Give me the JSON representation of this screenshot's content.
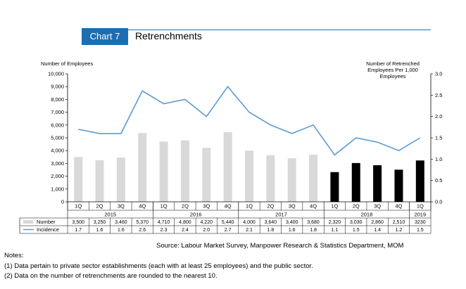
{
  "header": {
    "chart_label": "Chart 7",
    "title": "Retrenchments"
  },
  "chart_data": {
    "type": "bar",
    "title": "Retrenchments",
    "categories": [
      "1Q",
      "2Q",
      "3Q",
      "4Q",
      "1Q",
      "2Q",
      "3Q",
      "4Q",
      "1Q",
      "2Q",
      "3Q",
      "4Q",
      "1Q",
      "2Q",
      "3Q",
      "4Q",
      "1Q"
    ],
    "years": [
      {
        "label": "2015",
        "quarters": 4
      },
      {
        "label": "2016",
        "quarters": 4
      },
      {
        "label": "2017",
        "quarters": 4
      },
      {
        "label": "2018",
        "quarters": 4
      },
      {
        "label": "2019",
        "quarters": 1
      }
    ],
    "series": [
      {
        "name": "Number",
        "type": "bar",
        "axis": "left",
        "values": [
          3500,
          3250,
          3460,
          5370,
          4710,
          4800,
          4220,
          5440,
          4000,
          3640,
          3400,
          3680,
          2320,
          3030,
          2860,
          2510,
          3230
        ],
        "labels": [
          "3,500",
          "3,250",
          "3,460",
          "5,370",
          "4,710",
          "4,800",
          "4,220",
          "5,440",
          "4,000",
          "3,640",
          "3,400",
          "3,680",
          "2,320",
          "3,030",
          "2,860",
          "2,510",
          "3230"
        ],
        "color_light": "#d9d9d9",
        "color_dark": "#000000",
        "dark_from_index": 12
      },
      {
        "name": "Incidence",
        "type": "line",
        "axis": "right",
        "values": [
          1.7,
          1.6,
          1.6,
          2.6,
          2.3,
          2.4,
          2.0,
          2.7,
          2.1,
          1.8,
          1.6,
          1.8,
          1.1,
          1.5,
          1.4,
          1.2,
          1.5
        ],
        "labels": [
          "1.7",
          "1.6",
          "1.6",
          "2.6",
          "2.3",
          "2.4",
          "2.0",
          "2.7",
          "2.1",
          "1.8",
          "1.6",
          "1.8",
          "1.1",
          "1.5",
          "1.4",
          "1.2",
          "1.5"
        ],
        "color": "#5b9bd5"
      }
    ],
    "ylabel": "Number of Employees",
    "y2label": "Number of Retrenched Employees Per 1,000 Employees",
    "ylim": [
      0,
      10000
    ],
    "y2lim": [
      0,
      3.0
    ],
    "yticks": [
      "0",
      "1,000",
      "2,000",
      "3,000",
      "4,000",
      "5,000",
      "6,000",
      "7,000",
      "8,000",
      "9,000",
      "10,000"
    ],
    "y2ticks": [
      "0.0",
      "0.5",
      "1.0",
      "1.5",
      "2.0",
      "2.5",
      "3.0"
    ]
  },
  "source": "Source: Labour Market Survey, Manpower Research & Statistics Department, MOM",
  "notes": {
    "heading": "Notes:",
    "items": [
      "(1)  Data pertain to private sector establishments (each with at least 25 employees) and the public sector.",
      "(2)  Data on the number of retrenchments are rounded to the nearest 10."
    ]
  },
  "colors": {
    "accent": "#1f6db1",
    "line": "#5b9bd5",
    "bar_light": "#d9d9d9",
    "bar_dark": "#000000"
  }
}
